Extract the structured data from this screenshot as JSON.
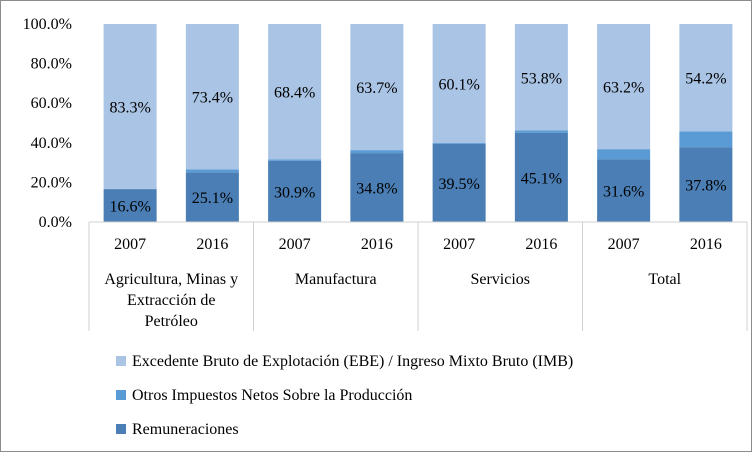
{
  "chart_data": {
    "type": "bar",
    "stacked": true,
    "percent_stacked": true,
    "title": "",
    "xlabel": "",
    "ylabel": "",
    "ylim": [
      0,
      100
    ],
    "yticks": [
      "0.0%",
      "20.0%",
      "40.0%",
      "60.0%",
      "80.0%",
      "100.0%"
    ],
    "groups": [
      {
        "label": "Agricultura, Minas y Extracción de Petróleo",
        "label_lines": [
          "Agricultura, Minas y",
          "Extracción de",
          "Petróleo"
        ],
        "years": [
          "2007",
          "2016"
        ]
      },
      {
        "label": "Manufactura",
        "label_lines": [
          "Manufactura"
        ],
        "years": [
          "2007",
          "2016"
        ]
      },
      {
        "label": "Servicios",
        "label_lines": [
          "Servicios"
        ],
        "years": [
          "2007",
          "2016"
        ]
      },
      {
        "label": "Total",
        "label_lines": [
          "Total"
        ],
        "years": [
          "2007",
          "2016"
        ]
      }
    ],
    "categories": [
      "2007",
      "2016",
      "2007",
      "2016",
      "2007",
      "2016",
      "2007",
      "2016"
    ],
    "series": [
      {
        "name": "Remuneraciones",
        "color": "#4a7eb4",
        "values": [
          16.6,
          25.1,
          30.9,
          34.8,
          39.5,
          45.1,
          31.6,
          37.8
        ],
        "labels": [
          "16.6%",
          "25.1%",
          "30.9%",
          "34.8%",
          "39.5%",
          "45.1%",
          "31.6%",
          "37.8%"
        ]
      },
      {
        "name": "Otros Impuestos Netos Sobre la Producción",
        "color": "#5b9bd5",
        "values": [
          0.1,
          1.5,
          0.7,
          1.5,
          0.4,
          1.1,
          5.2,
          8.0
        ],
        "labels": null
      },
      {
        "name": "Excedente Bruto de Explotación (EBE) / Ingreso Mixto Bruto (IMB)",
        "color": "#a9c4e4",
        "values": [
          83.3,
          73.4,
          68.4,
          63.7,
          60.1,
          53.8,
          63.2,
          54.2
        ],
        "labels": [
          "83.3%",
          "73.4%",
          "68.4%",
          "63.7%",
          "60.1%",
          "53.8%",
          "63.2%",
          "54.2%"
        ]
      }
    ],
    "legend": {
      "placement": "bottom",
      "order": [
        "Excedente Bruto de Explotación (EBE) / Ingreso Mixto Bruto (IMB)",
        "Otros Impuestos Netos Sobre la Producción",
        "Remuneraciones"
      ]
    },
    "grid": false
  }
}
